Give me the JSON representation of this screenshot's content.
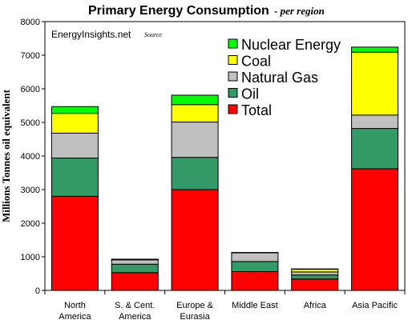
{
  "chart_data": {
    "type": "bar",
    "stacked": true,
    "title": "Primary Energy Consumption",
    "subtitle": "- per region",
    "ylabel": "Millions Tonnes oil equivalent",
    "ylim": [
      0,
      8000
    ],
    "yticks": [
      0,
      1000,
      2000,
      3000,
      4000,
      5000,
      6000,
      7000,
      8000
    ],
    "grid": false,
    "legend_position": "top-right",
    "categories": [
      [
        "North",
        "America"
      ],
      [
        "S. & Cent.",
        "America"
      ],
      [
        "Europe &",
        "Eurasia"
      ],
      [
        "Middle East"
      ],
      [
        "Africa"
      ],
      [
        "Asia Pacific"
      ]
    ],
    "series": [
      {
        "name": "Total",
        "color": "#ff0000",
        "values": [
          2800,
          530,
          3000,
          560,
          340,
          3620
        ]
      },
      {
        "name": "Oil",
        "color": "#339966",
        "values": [
          1140,
          250,
          960,
          300,
          120,
          1200
        ]
      },
      {
        "name": "Natural Gas",
        "color": "#c0c0c0",
        "values": [
          740,
          130,
          1050,
          260,
          90,
          400
        ]
      },
      {
        "name": "Coal",
        "color": "#ffff00",
        "values": [
          590,
          10,
          520,
          10,
          80,
          1870
        ]
      },
      {
        "name": "Nuclear Energy",
        "color": "#00ff00",
        "values": [
          200,
          10,
          280,
          0,
          10,
          150
        ]
      }
    ],
    "legend_order": [
      "Nuclear Energy",
      "Coal",
      "Natural Gas",
      "Oil",
      "Total"
    ],
    "annotations": {
      "source_name": "EnergyInsights.net",
      "source_label": "Source"
    }
  }
}
